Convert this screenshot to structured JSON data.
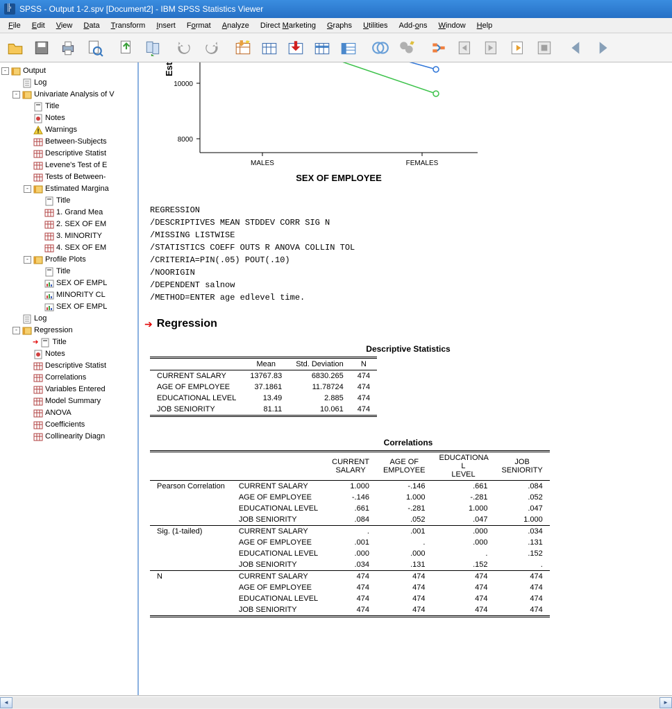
{
  "window": {
    "title": "SPSS - Output 1-2.spv [Document2] - IBM SPSS Statistics Viewer"
  },
  "menus": [
    {
      "l": "F",
      "t": "ile"
    },
    {
      "l": "E",
      "t": "dit"
    },
    {
      "l": "V",
      "t": "iew"
    },
    {
      "l": "D",
      "t": "ata"
    },
    {
      "l": "T",
      "t": "ransform"
    },
    {
      "l": "I",
      "t": "nsert"
    },
    {
      "l": "",
      "t": "F",
      "l2": "o",
      "t2": "rmat"
    },
    {
      "l": "A",
      "t": "nalyze"
    },
    {
      "l": "",
      "t": "Direct ",
      "l2": "M",
      "t2": "arketing"
    },
    {
      "l": "G",
      "t": "raphs"
    },
    {
      "l": "U",
      "t": "tilities"
    },
    {
      "l": "",
      "t": "Add-",
      "l2": "o",
      "t2": "ns"
    },
    {
      "l": "W",
      "t": "indow"
    },
    {
      "l": "H",
      "t": "elp"
    }
  ],
  "tree": [
    {
      "d": 0,
      "exp": "-",
      "icon": "book",
      "label": "Output"
    },
    {
      "d": 1,
      "exp": " ",
      "icon": "log",
      "label": "Log"
    },
    {
      "d": 1,
      "exp": "-",
      "icon": "book",
      "label": "Univariate Analysis of V"
    },
    {
      "d": 2,
      "exp": " ",
      "icon": "title",
      "label": "Title"
    },
    {
      "d": 2,
      "exp": " ",
      "icon": "notes",
      "label": "Notes"
    },
    {
      "d": 2,
      "exp": " ",
      "icon": "warn",
      "label": "Warnings"
    },
    {
      "d": 2,
      "exp": " ",
      "icon": "table",
      "label": "Between-Subjects"
    },
    {
      "d": 2,
      "exp": " ",
      "icon": "table",
      "label": "Descriptive Statist"
    },
    {
      "d": 2,
      "exp": " ",
      "icon": "table",
      "label": "Levene's Test of E"
    },
    {
      "d": 2,
      "exp": " ",
      "icon": "table",
      "label": "Tests of Between-"
    },
    {
      "d": 2,
      "exp": "-",
      "icon": "book",
      "label": "Estimated Margina"
    },
    {
      "d": 3,
      "exp": " ",
      "icon": "title",
      "label": "Title"
    },
    {
      "d": 3,
      "exp": " ",
      "icon": "table",
      "label": "1. Grand Mea"
    },
    {
      "d": 3,
      "exp": " ",
      "icon": "table",
      "label": "2. SEX OF EM"
    },
    {
      "d": 3,
      "exp": " ",
      "icon": "table",
      "label": "3. MINORITY"
    },
    {
      "d": 3,
      "exp": " ",
      "icon": "table",
      "label": "4. SEX OF EM"
    },
    {
      "d": 2,
      "exp": "-",
      "icon": "book",
      "label": "Profile Plots"
    },
    {
      "d": 3,
      "exp": " ",
      "icon": "title",
      "label": "Title"
    },
    {
      "d": 3,
      "exp": " ",
      "icon": "chart",
      "label": "SEX OF EMPL"
    },
    {
      "d": 3,
      "exp": " ",
      "icon": "chart",
      "label": "MINORITY CL"
    },
    {
      "d": 3,
      "exp": " ",
      "icon": "chart",
      "label": "SEX OF EMPL"
    },
    {
      "d": 1,
      "exp": " ",
      "icon": "log",
      "label": "Log"
    },
    {
      "d": 1,
      "exp": "-",
      "icon": "book",
      "label": "Regression"
    },
    {
      "d": 2,
      "exp": " ",
      "icon": "title",
      "label": "Title",
      "arrow": true
    },
    {
      "d": 2,
      "exp": " ",
      "icon": "notes",
      "label": "Notes"
    },
    {
      "d": 2,
      "exp": " ",
      "icon": "table",
      "label": "Descriptive Statist"
    },
    {
      "d": 2,
      "exp": " ",
      "icon": "table",
      "label": "Correlations"
    },
    {
      "d": 2,
      "exp": " ",
      "icon": "table",
      "label": "Variables Entered"
    },
    {
      "d": 2,
      "exp": " ",
      "icon": "table",
      "label": "Model Summary"
    },
    {
      "d": 2,
      "exp": " ",
      "icon": "table",
      "label": "ANOVA"
    },
    {
      "d": 2,
      "exp": " ",
      "icon": "table",
      "label": "Coefficients"
    },
    {
      "d": 2,
      "exp": " ",
      "icon": "table",
      "label": "Collinearity Diagn"
    }
  ],
  "chart": {
    "y_tick_labels": [
      "10000",
      "8000"
    ],
    "y_tick_pos": [
      30,
      110
    ],
    "x_tick_labels": [
      "MALES",
      "FEMALES"
    ],
    "x_axis_label": "SEX OF EMPLOYEE",
    "rotated_y": "Est",
    "series": [
      {
        "color": "#2e75d8",
        "pts": [
          [
            90,
            -60
          ],
          [
            340,
            10
          ]
        ]
      },
      {
        "color": "#3cc24a",
        "pts": [
          [
            90,
            -40
          ],
          [
            340,
            45
          ]
        ]
      }
    ],
    "marker_radius": 4,
    "background": "#ffffff",
    "axis_color": "#000000",
    "tick_font_size": 10,
    "label_font_size": 13
  },
  "syntax_lines": [
    "REGRESSION",
    "  /DESCRIPTIVES MEAN STDDEV CORR SIG N",
    "  /MISSING LISTWISE",
    "  /STATISTICS COEFF OUTS R ANOVA COLLIN TOL",
    "  /CRITERIA=PIN(.05) POUT(.10)",
    "  /NOORIGIN",
    "  /DEPENDENT salnow",
    "  /METHOD=ENTER age edlevel time."
  ],
  "section_title": "Regression",
  "desc_table": {
    "caption": "Descriptive Statistics",
    "headers": [
      "",
      "Mean",
      "Std. Deviation",
      "N"
    ],
    "rows": [
      [
        "CURRENT SALARY",
        "13767.83",
        "6830.265",
        "474"
      ],
      [
        "AGE OF EMPLOYEE",
        "37.1861",
        "11.78724",
        "474"
      ],
      [
        "EDUCATIONAL LEVEL",
        "13.49",
        "2.885",
        "474"
      ],
      [
        "JOB SENIORITY",
        "81.11",
        "10.061",
        "474"
      ]
    ]
  },
  "corr_table": {
    "caption": "Correlations",
    "col_headers": [
      "CURRENT SALARY",
      "AGE OF EMPLOYEE",
      "EDUCATIONA L LEVEL",
      "JOB SENIORITY"
    ],
    "groups": [
      {
        "label": "Pearson Correlation",
        "rows": [
          [
            "CURRENT SALARY",
            "1.000",
            "-.146",
            ".661",
            ".084"
          ],
          [
            "AGE OF EMPLOYEE",
            "-.146",
            "1.000",
            "-.281",
            ".052"
          ],
          [
            "EDUCATIONAL LEVEL",
            ".661",
            "-.281",
            "1.000",
            ".047"
          ],
          [
            "JOB SENIORITY",
            ".084",
            ".052",
            ".047",
            "1.000"
          ]
        ]
      },
      {
        "label": "Sig. (1-tailed)",
        "rows": [
          [
            "CURRENT SALARY",
            ".",
            ".001",
            ".000",
            ".034"
          ],
          [
            "AGE OF EMPLOYEE",
            ".001",
            ".",
            ".000",
            ".131"
          ],
          [
            "EDUCATIONAL LEVEL",
            ".000",
            ".000",
            ".",
            ".152"
          ],
          [
            "JOB SENIORITY",
            ".034",
            ".131",
            ".152",
            "."
          ]
        ]
      },
      {
        "label": "N",
        "rows": [
          [
            "CURRENT SALARY",
            "474",
            "474",
            "474",
            "474"
          ],
          [
            "AGE OF EMPLOYEE",
            "474",
            "474",
            "474",
            "474"
          ],
          [
            "EDUCATIONAL LEVEL",
            "474",
            "474",
            "474",
            "474"
          ],
          [
            "JOB SENIORITY",
            "474",
            "474",
            "474",
            "474"
          ]
        ]
      }
    ]
  },
  "colors": {
    "titlebar_grad_top": "#3a8de0",
    "titlebar_grad_bot": "#2670c5",
    "toolbar_bg": "#f4f4f4",
    "nav_border": "#8ab0e0"
  }
}
